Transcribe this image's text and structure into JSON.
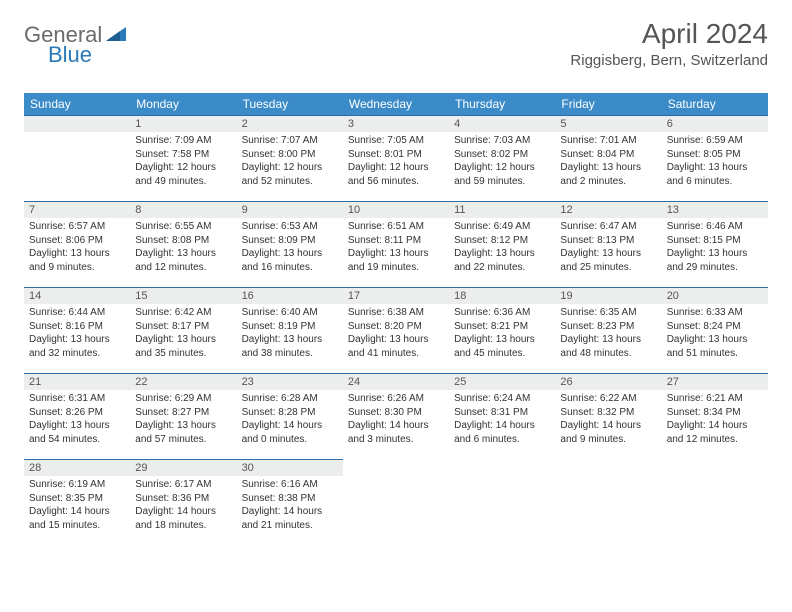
{
  "brand": {
    "general": "General",
    "blue": "Blue"
  },
  "title": "April 2024",
  "location": "Riggisberg, Bern, Switzerland",
  "colors": {
    "header_bg": "#3b8bc9",
    "daynum_bg": "#eceded",
    "row_border": "#2a6ea5",
    "brand_blue": "#2a7ab9",
    "brand_gray": "#6b6b6b"
  },
  "weekdays": [
    "Sunday",
    "Monday",
    "Tuesday",
    "Wednesday",
    "Thursday",
    "Friday",
    "Saturday"
  ],
  "weeks": [
    [
      {
        "n": "",
        "sr": "",
        "ss": "",
        "dl": ""
      },
      {
        "n": "1",
        "sr": "Sunrise: 7:09 AM",
        "ss": "Sunset: 7:58 PM",
        "dl": "Daylight: 12 hours and 49 minutes."
      },
      {
        "n": "2",
        "sr": "Sunrise: 7:07 AM",
        "ss": "Sunset: 8:00 PM",
        "dl": "Daylight: 12 hours and 52 minutes."
      },
      {
        "n": "3",
        "sr": "Sunrise: 7:05 AM",
        "ss": "Sunset: 8:01 PM",
        "dl": "Daylight: 12 hours and 56 minutes."
      },
      {
        "n": "4",
        "sr": "Sunrise: 7:03 AM",
        "ss": "Sunset: 8:02 PM",
        "dl": "Daylight: 12 hours and 59 minutes."
      },
      {
        "n": "5",
        "sr": "Sunrise: 7:01 AM",
        "ss": "Sunset: 8:04 PM",
        "dl": "Daylight: 13 hours and 2 minutes."
      },
      {
        "n": "6",
        "sr": "Sunrise: 6:59 AM",
        "ss": "Sunset: 8:05 PM",
        "dl": "Daylight: 13 hours and 6 minutes."
      }
    ],
    [
      {
        "n": "7",
        "sr": "Sunrise: 6:57 AM",
        "ss": "Sunset: 8:06 PM",
        "dl": "Daylight: 13 hours and 9 minutes."
      },
      {
        "n": "8",
        "sr": "Sunrise: 6:55 AM",
        "ss": "Sunset: 8:08 PM",
        "dl": "Daylight: 13 hours and 12 minutes."
      },
      {
        "n": "9",
        "sr": "Sunrise: 6:53 AM",
        "ss": "Sunset: 8:09 PM",
        "dl": "Daylight: 13 hours and 16 minutes."
      },
      {
        "n": "10",
        "sr": "Sunrise: 6:51 AM",
        "ss": "Sunset: 8:11 PM",
        "dl": "Daylight: 13 hours and 19 minutes."
      },
      {
        "n": "11",
        "sr": "Sunrise: 6:49 AM",
        "ss": "Sunset: 8:12 PM",
        "dl": "Daylight: 13 hours and 22 minutes."
      },
      {
        "n": "12",
        "sr": "Sunrise: 6:47 AM",
        "ss": "Sunset: 8:13 PM",
        "dl": "Daylight: 13 hours and 25 minutes."
      },
      {
        "n": "13",
        "sr": "Sunrise: 6:46 AM",
        "ss": "Sunset: 8:15 PM",
        "dl": "Daylight: 13 hours and 29 minutes."
      }
    ],
    [
      {
        "n": "14",
        "sr": "Sunrise: 6:44 AM",
        "ss": "Sunset: 8:16 PM",
        "dl": "Daylight: 13 hours and 32 minutes."
      },
      {
        "n": "15",
        "sr": "Sunrise: 6:42 AM",
        "ss": "Sunset: 8:17 PM",
        "dl": "Daylight: 13 hours and 35 minutes."
      },
      {
        "n": "16",
        "sr": "Sunrise: 6:40 AM",
        "ss": "Sunset: 8:19 PM",
        "dl": "Daylight: 13 hours and 38 minutes."
      },
      {
        "n": "17",
        "sr": "Sunrise: 6:38 AM",
        "ss": "Sunset: 8:20 PM",
        "dl": "Daylight: 13 hours and 41 minutes."
      },
      {
        "n": "18",
        "sr": "Sunrise: 6:36 AM",
        "ss": "Sunset: 8:21 PM",
        "dl": "Daylight: 13 hours and 45 minutes."
      },
      {
        "n": "19",
        "sr": "Sunrise: 6:35 AM",
        "ss": "Sunset: 8:23 PM",
        "dl": "Daylight: 13 hours and 48 minutes."
      },
      {
        "n": "20",
        "sr": "Sunrise: 6:33 AM",
        "ss": "Sunset: 8:24 PM",
        "dl": "Daylight: 13 hours and 51 minutes."
      }
    ],
    [
      {
        "n": "21",
        "sr": "Sunrise: 6:31 AM",
        "ss": "Sunset: 8:26 PM",
        "dl": "Daylight: 13 hours and 54 minutes."
      },
      {
        "n": "22",
        "sr": "Sunrise: 6:29 AM",
        "ss": "Sunset: 8:27 PM",
        "dl": "Daylight: 13 hours and 57 minutes."
      },
      {
        "n": "23",
        "sr": "Sunrise: 6:28 AM",
        "ss": "Sunset: 8:28 PM",
        "dl": "Daylight: 14 hours and 0 minutes."
      },
      {
        "n": "24",
        "sr": "Sunrise: 6:26 AM",
        "ss": "Sunset: 8:30 PM",
        "dl": "Daylight: 14 hours and 3 minutes."
      },
      {
        "n": "25",
        "sr": "Sunrise: 6:24 AM",
        "ss": "Sunset: 8:31 PM",
        "dl": "Daylight: 14 hours and 6 minutes."
      },
      {
        "n": "26",
        "sr": "Sunrise: 6:22 AM",
        "ss": "Sunset: 8:32 PM",
        "dl": "Daylight: 14 hours and 9 minutes."
      },
      {
        "n": "27",
        "sr": "Sunrise: 6:21 AM",
        "ss": "Sunset: 8:34 PM",
        "dl": "Daylight: 14 hours and 12 minutes."
      }
    ],
    [
      {
        "n": "28",
        "sr": "Sunrise: 6:19 AM",
        "ss": "Sunset: 8:35 PM",
        "dl": "Daylight: 14 hours and 15 minutes."
      },
      {
        "n": "29",
        "sr": "Sunrise: 6:17 AM",
        "ss": "Sunset: 8:36 PM",
        "dl": "Daylight: 14 hours and 18 minutes."
      },
      {
        "n": "30",
        "sr": "Sunrise: 6:16 AM",
        "ss": "Sunset: 8:38 PM",
        "dl": "Daylight: 14 hours and 21 minutes."
      },
      {
        "n": "",
        "sr": "",
        "ss": "",
        "dl": ""
      },
      {
        "n": "",
        "sr": "",
        "ss": "",
        "dl": ""
      },
      {
        "n": "",
        "sr": "",
        "ss": "",
        "dl": ""
      },
      {
        "n": "",
        "sr": "",
        "ss": "",
        "dl": ""
      }
    ]
  ]
}
